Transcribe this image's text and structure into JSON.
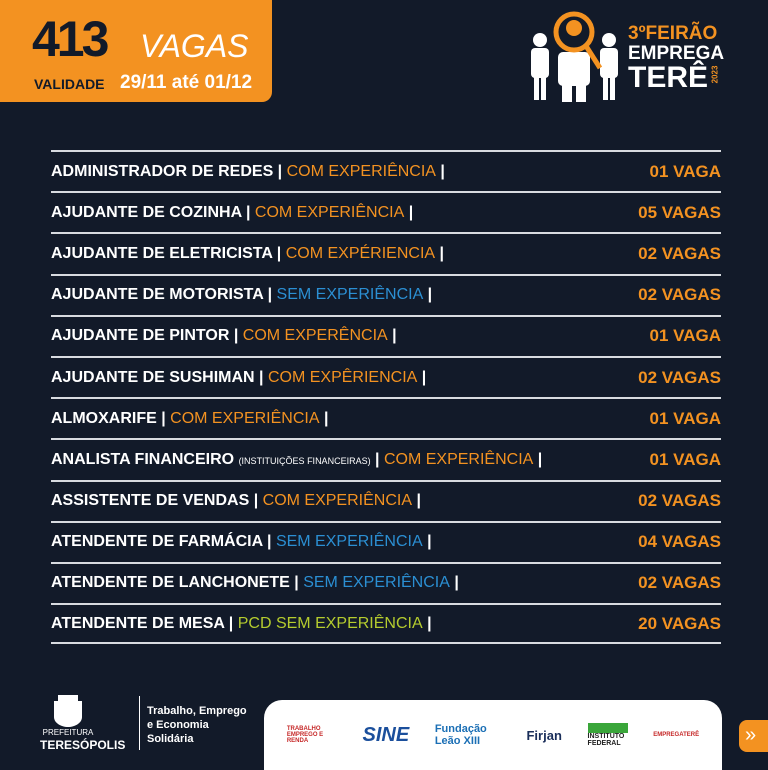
{
  "header": {
    "count": "413",
    "count_label": "VAGAS",
    "validity_label": "VALIDADE",
    "validity_dates": "29/11 até 01/12"
  },
  "event_logo": {
    "line1": "3ºFEIRÃO",
    "line2": "EMPREGA",
    "line3": "TERÊ",
    "year": "2023"
  },
  "colors": {
    "orange": "#f39221",
    "background": "#121a29",
    "sem": "#2b8fd3",
    "pcd": "#b5cc2e",
    "com": "#f39221"
  },
  "jobs": [
    {
      "title": "ADMINISTRADOR DE REDES",
      "note": "",
      "req": "COM EXPERIÊNCIA",
      "type": "com",
      "vagas": "01 VAGA"
    },
    {
      "title": "AJUDANTE DE COZINHA",
      "note": "",
      "req": "COM EXPERIÊNCIA",
      "type": "com",
      "vagas": "05 VAGAS"
    },
    {
      "title": "AJUDANTE DE ELETRICISTA",
      "note": "",
      "req": "COM EXPÉRIENCIA",
      "type": "com",
      "vagas": "02 VAGAS"
    },
    {
      "title": "AJUDANTE DE MOTORISTA",
      "note": "",
      "req": "SEM EXPERIÊNCIA",
      "type": "sem",
      "vagas": "02 VAGAS"
    },
    {
      "title": "AJUDANTE DE PINTOR",
      "note": "",
      "req": "COM EXPERÊNCIA",
      "type": "com",
      "vagas": "01 VAGA"
    },
    {
      "title": "AJUDANTE DE SUSHIMAN",
      "note": "",
      "req": "COM EXPÊRIENCIA",
      "type": "com",
      "vagas": "02 VAGAS"
    },
    {
      "title": "ALMOXARIFE",
      "note": "",
      "req": "COM EXPERIÊNCIA",
      "type": "com",
      "vagas": "01 VAGA"
    },
    {
      "title": "ANALISTA FINANCEIRO",
      "note": "(INSTITUIÇÕES FINANCEIRAS)",
      "req": "COM EXPERIÊNCIA",
      "type": "com",
      "vagas": "01 VAGA"
    },
    {
      "title": "ASSISTENTE DE VENDAS",
      "note": "",
      "req": "COM EXPERIÊNCIA",
      "type": "com",
      "vagas": "02 VAGAS"
    },
    {
      "title": "ATENDENTE DE FARMÁCIA",
      "note": "",
      "req": "SEM EXPERIÊNCIA",
      "type": "sem",
      "vagas": "04 VAGAS"
    },
    {
      "title": "ATENDENTE DE LANCHONETE",
      "note": "",
      "req": "SEM EXPERIÊNCIA",
      "type": "sem",
      "vagas": "02 VAGAS"
    },
    {
      "title": "ATENDENTE DE MESA",
      "note": "",
      "req": "PCD SEM EXPERIÊNCIA",
      "type": "pcd",
      "vagas": "20 VAGAS"
    }
  ],
  "footer": {
    "pref_small": "PREFEITURA",
    "pref_big": "TERESÓPOLIS",
    "secretaria": [
      "Trabalho, Emprego",
      "e Economia",
      "Solidária"
    ],
    "partners": [
      "TRABALHO EMPREGO E RENDA",
      "SINE",
      "Fundação Leão XIII",
      "Firjan",
      "INSTITUTO FEDERAL",
      "EMPREGATERÊ"
    ],
    "next_icon": "double-chevron-right-icon"
  }
}
